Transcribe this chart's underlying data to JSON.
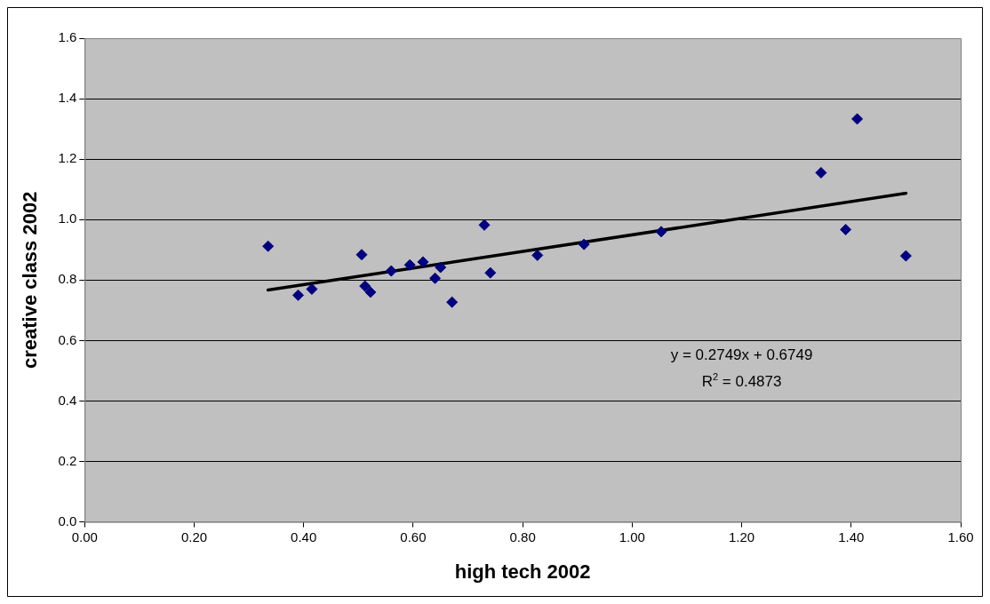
{
  "chart_data": {
    "type": "scatter",
    "xlabel": "high tech 2002",
    "ylabel": "creative class 2002",
    "xlim": [
      0,
      1.6
    ],
    "xticks": [
      {
        "value": 0,
        "label": "0.00"
      },
      {
        "value": 0.2,
        "label": "0.20"
      },
      {
        "value": 0.4,
        "label": "0.40"
      },
      {
        "value": 0.6,
        "label": "0.60"
      },
      {
        "value": 0.8,
        "label": "0.80"
      },
      {
        "value": 1.0,
        "label": "1.00"
      },
      {
        "value": 1.2,
        "label": "1.20"
      },
      {
        "value": 1.4,
        "label": "1.40"
      },
      {
        "value": 1.6,
        "label": "1.60"
      }
    ],
    "ylim": [
      0,
      1.6
    ],
    "yticks": [
      {
        "value": 0,
        "label": "0.0"
      },
      {
        "value": 0.2,
        "label": "0.2"
      },
      {
        "value": 0.4,
        "label": "0.4"
      },
      {
        "value": 0.6,
        "label": "0.6"
      },
      {
        "value": 0.8,
        "label": "0.8"
      },
      {
        "value": 1.0,
        "label": "1.0"
      },
      {
        "value": 1.2,
        "label": "1.2"
      },
      {
        "value": 1.4,
        "label": "1.4"
      },
      {
        "value": 1.6,
        "label": "1.6"
      }
    ],
    "grid": "y",
    "marker": "diamond",
    "series": [
      {
        "color": "#000080",
        "x": [
          0.335,
          0.39,
          0.415,
          0.506,
          0.512,
          0.522,
          0.56,
          0.594,
          0.618,
          0.64,
          0.65,
          0.671,
          0.73,
          0.741,
          0.827,
          0.912,
          1.053,
          1.345,
          1.39,
          1.411,
          1.5
        ],
        "values": [
          0.912,
          0.75,
          0.77,
          0.884,
          0.78,
          0.76,
          0.83,
          0.85,
          0.86,
          0.806,
          0.842,
          0.727,
          0.982,
          0.824,
          0.882,
          0.918,
          0.96,
          1.155,
          0.967,
          1.333,
          0.88
        ]
      },
      {
        "type": "line",
        "color": "#000000",
        "marker": "none",
        "line_style": "solid",
        "x": [
          0.335,
          1.5
        ],
        "values": [
          0.767,
          1.087
        ]
      }
    ],
    "annotations": [
      "y = 0.2749x + 0.6749",
      "R$^{2}$ = 0.4873"
    ]
  }
}
